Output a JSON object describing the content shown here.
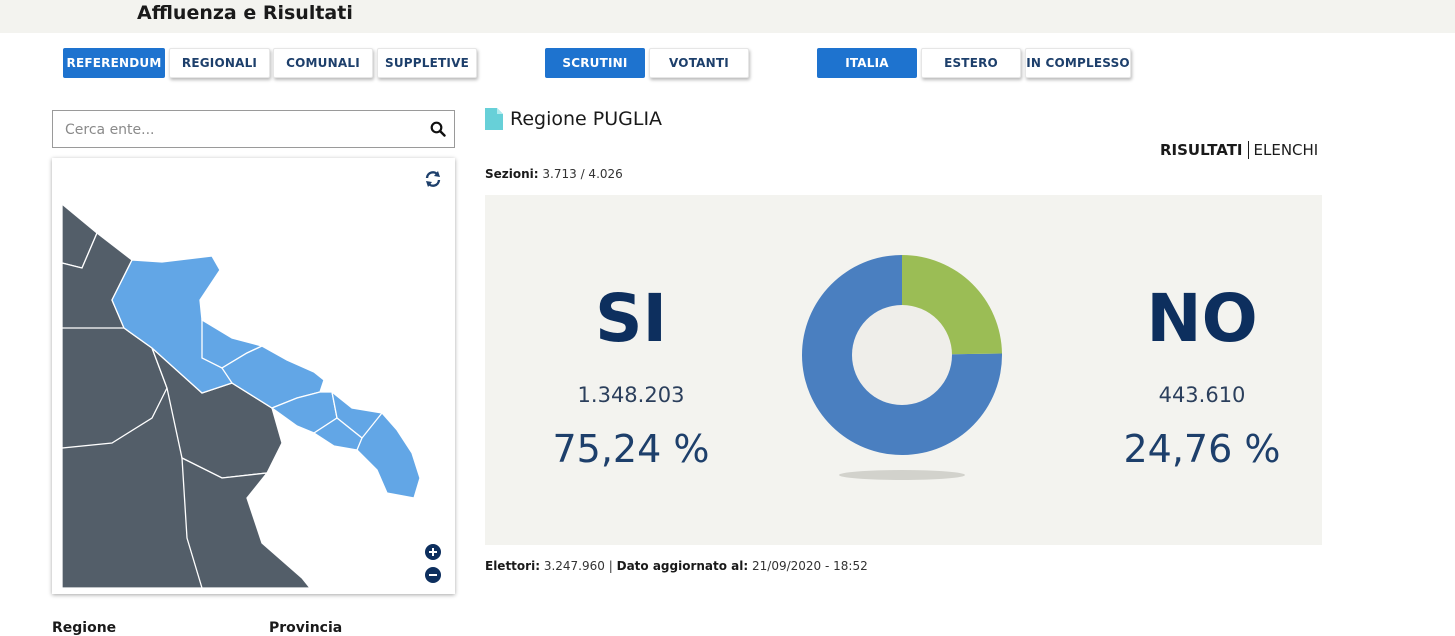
{
  "header": {
    "title": "Affluenza e Risultati"
  },
  "nav": {
    "type_tabs": [
      "REFERENDUM",
      "REGIONALI",
      "COMUNALI",
      "SUPPLETIVE"
    ],
    "mode_tabs": [
      "SCRUTINI",
      "VOTANTI"
    ],
    "scope_tabs": [
      "ITALIA",
      "ESTERO",
      "IN COMPLESSO"
    ],
    "active": {
      "type": "REFERENDUM",
      "mode": "SCRUTINI",
      "scope": "ITALIA"
    }
  },
  "search": {
    "placeholder": "Cerca ente...",
    "value": ""
  },
  "map": {
    "icons": [
      "refresh-icon",
      "zoom-in-icon",
      "zoom-out-icon"
    ]
  },
  "list_headers": {
    "regione": "Regione",
    "provincia": "Provincia"
  },
  "region": {
    "title": "Regione PUGLIA"
  },
  "view_tabs": {
    "risultati": "RISULTATI",
    "elenchi": "ELENCHI"
  },
  "sezioni": {
    "label": "Sezioni:",
    "value": "3.713 / 4.026"
  },
  "results": {
    "si": {
      "label": "SI",
      "votes": "1.348.203",
      "percent": "75,24 %",
      "fraction": 0.7524
    },
    "no": {
      "label": "NO",
      "votes": "443.610",
      "percent": "24,76 %",
      "fraction": 0.2476
    }
  },
  "footer": {
    "elettori_label": "Elettori:",
    "elettori_value": "3.247.960",
    "separator": "|",
    "updated_label": "Dato aggiornato al:",
    "updated_value": "21/09/2020 - 18:52"
  },
  "colors": {
    "active_button": "#1e73cf",
    "si_slice": "#4a7fc0",
    "no_slice": "#9bbd55",
    "map_selected": "#62a6e6",
    "map_other": "#535e69",
    "doc_icon": "#67d0d8"
  }
}
